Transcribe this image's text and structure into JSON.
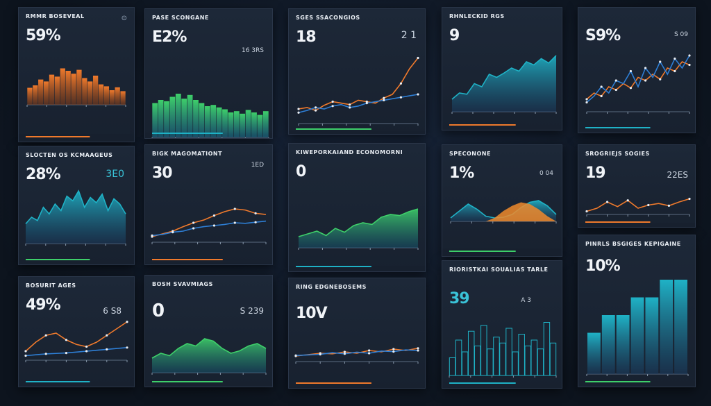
{
  "colors": {
    "orange": "#f07a2c",
    "teal": "#1fb2c6",
    "green": "#3ecf6a",
    "blue": "#2e7fd6",
    "card": "#1b2534"
  },
  "cards": [
    {
      "title": "RMMR BOSEVEAL",
      "big": "59%",
      "sub": "",
      "corner": "⊙"
    },
    {
      "title": "PASE SCONGANE",
      "big": "E2%",
      "sub": "16 3RS",
      "corner": ""
    },
    {
      "title": "SGES SSACONGIOS",
      "big": "18",
      "sub": "2 1",
      "corner": ""
    },
    {
      "title": "RHNLECKID RGS",
      "big": "9",
      "sub": "",
      "corner": ""
    },
    {
      "title": "",
      "big": "S9%",
      "sub": "S 09",
      "corner": ""
    },
    {
      "title": "SLOCTEN OS KCMAAGEUS",
      "big": "28%",
      "sub": "3E0",
      "corner": ""
    },
    {
      "title": "BIGK MAGOMATIONT",
      "big": "30",
      "sub": "1ED",
      "corner": ""
    },
    {
      "title": "KIWEPORKAIAND ECONOMORNI",
      "big": "0",
      "sub": "",
      "corner": ""
    },
    {
      "title": "SPECONONE",
      "big": "1%",
      "sub": "0 04",
      "corner": ""
    },
    {
      "title": "SROGRIEJS SOGIES",
      "big": "19",
      "sub": "22ES",
      "corner": ""
    },
    {
      "title": "BOSURIT AGES",
      "big": "49%",
      "sub": "6 S8",
      "corner": ""
    },
    {
      "title": "BOSH SVAVMIAGS",
      "big": "0",
      "sub": "S 239",
      "corner": ""
    },
    {
      "title": "RING EDGNEBOSEMS",
      "big": "10V",
      "sub": "",
      "corner": ""
    },
    {
      "title": "RIORISTKAI SOUALIAS TARLE",
      "big": "39",
      "sub": "A 3",
      "corner": ""
    },
    {
      "title": "PINRLS BSGIGES KEPIGAINE",
      "big": "10%",
      "sub": "",
      "corner": ""
    }
  ],
  "chart_data": [
    {
      "type": "bar",
      "title": "RMMR BOSEVEAL",
      "series": [
        {
          "values": [
            35,
            40,
            52,
            48,
            62,
            58,
            75,
            70,
            64,
            72,
            55,
            48,
            60,
            42,
            38,
            30,
            36,
            28
          ]
        }
      ],
      "ylim": [
        0,
        100
      ]
    },
    {
      "type": "bar",
      "title": "PASE SCONGANE",
      "series": [
        {
          "values": [
            55,
            60,
            58,
            65,
            70,
            62,
            68,
            60,
            55,
            50,
            52,
            48,
            45,
            40,
            42,
            38,
            44,
            40,
            36,
            42
          ]
        }
      ],
      "ylim": [
        0,
        100
      ]
    },
    {
      "type": "line",
      "title": "SGES SSACONGIOS",
      "series": [
        {
          "values": [
            20,
            22,
            18,
            25,
            30,
            28,
            26,
            32,
            30,
            28,
            35,
            40,
            55,
            75,
            90
          ]
        },
        {
          "values": [
            15,
            18,
            22,
            20,
            24,
            26,
            22,
            24,
            28,
            30,
            32,
            34,
            36,
            38,
            40
          ]
        }
      ],
      "ylim": [
        0,
        100
      ]
    },
    {
      "type": "area",
      "title": "RHNLECKID RGS",
      "series": [
        {
          "values": [
            20,
            30,
            28,
            45,
            40,
            60,
            55,
            62,
            70,
            65,
            80,
            75,
            85,
            78,
            90
          ]
        }
      ],
      "ylim": [
        0,
        100
      ]
    },
    {
      "type": "line",
      "title": "",
      "series": [
        {
          "values": [
            20,
            30,
            25,
            40,
            35,
            45,
            38,
            55,
            50,
            60,
            52,
            70,
            65,
            80,
            75
          ]
        },
        {
          "values": [
            15,
            25,
            40,
            30,
            50,
            45,
            65,
            40,
            70,
            55,
            80,
            60,
            85,
            70,
            90
          ]
        }
      ],
      "ylim": [
        0,
        100
      ]
    },
    {
      "type": "area",
      "title": "SLOCTEN OS KCMAAGEUS",
      "series": [
        {
          "values": [
            30,
            40,
            35,
            55,
            45,
            60,
            50,
            72,
            65,
            80,
            55,
            70,
            62,
            75,
            50,
            68,
            60,
            45
          ]
        }
      ],
      "ylim": [
        0,
        100
      ]
    },
    {
      "type": "line",
      "title": "BIGK MAGOMATIONT",
      "series": [
        {
          "values": [
            10,
            15,
            20,
            28,
            35,
            40,
            48,
            55,
            60,
            58,
            52,
            50
          ]
        },
        {
          "values": [
            12,
            14,
            18,
            20,
            25,
            28,
            30,
            32,
            35,
            34,
            36,
            38
          ]
        }
      ],
      "ylim": [
        0,
        100
      ]
    },
    {
      "type": "area",
      "title": "KIWEPORKAIAND ECONOMORNI",
      "series": [
        {
          "values": [
            20,
            25,
            30,
            22,
            35,
            28,
            40,
            45,
            42,
            55,
            60,
            58,
            65,
            70
          ]
        }
      ],
      "ylim": [
        0,
        100
      ]
    },
    {
      "type": "area",
      "title": "SPECONONE",
      "series": [
        {
          "values": [
            10,
            30,
            50,
            35,
            15,
            10,
            12,
            20,
            40,
            55,
            60,
            45,
            20
          ]
        }
      ],
      "ylim": [
        0,
        100
      ]
    },
    {
      "type": "line",
      "title": "SROGRIEJS SOGIES",
      "series": [
        {
          "values": [
            10,
            20,
            40,
            25,
            45,
            20,
            30,
            35,
            28,
            40,
            50
          ]
        }
      ],
      "ylim": [
        0,
        100
      ]
    },
    {
      "type": "line",
      "title": "BOSURIT AGES",
      "series": [
        {
          "values": [
            20,
            40,
            55,
            60,
            45,
            35,
            30,
            40,
            55,
            70,
            85
          ]
        },
        {
          "values": [
            10,
            12,
            14,
            15,
            16,
            18,
            20,
            22,
            24,
            26,
            28
          ]
        }
      ],
      "ylim": [
        0,
        100
      ]
    },
    {
      "type": "area",
      "title": "BOSH SVAVMIAGS",
      "series": [
        {
          "values": [
            30,
            40,
            35,
            50,
            60,
            55,
            70,
            65,
            50,
            40,
            45,
            55,
            60,
            50
          ]
        }
      ],
      "ylim": [
        0,
        100
      ]
    },
    {
      "type": "line",
      "title": "RING EDGNEBOSEMS",
      "series": [
        {
          "values": [
            20,
            25,
            30,
            28,
            35,
            30,
            40,
            35,
            45,
            40,
            48
          ]
        },
        {
          "values": [
            22,
            24,
            26,
            32,
            28,
            34,
            30,
            38,
            36,
            42,
            40
          ]
        }
      ],
      "ylim": [
        0,
        100
      ]
    },
    {
      "type": "bar",
      "title": "RIORISTKAI SOUALIAS TARLE",
      "series": [
        {
          "values": [
            30,
            60,
            40,
            75,
            50,
            85,
            45,
            65,
            55,
            80,
            40,
            70,
            50,
            60,
            45,
            90,
            55
          ]
        }
      ],
      "ylim": [
        0,
        100
      ]
    },
    {
      "type": "bar",
      "title": "PINRLS BSGIGES KEPIGAINE",
      "series": [
        {
          "values": [
            35,
            50,
            50,
            65,
            65,
            80,
            80
          ]
        }
      ],
      "ylim": [
        0,
        100
      ]
    }
  ]
}
